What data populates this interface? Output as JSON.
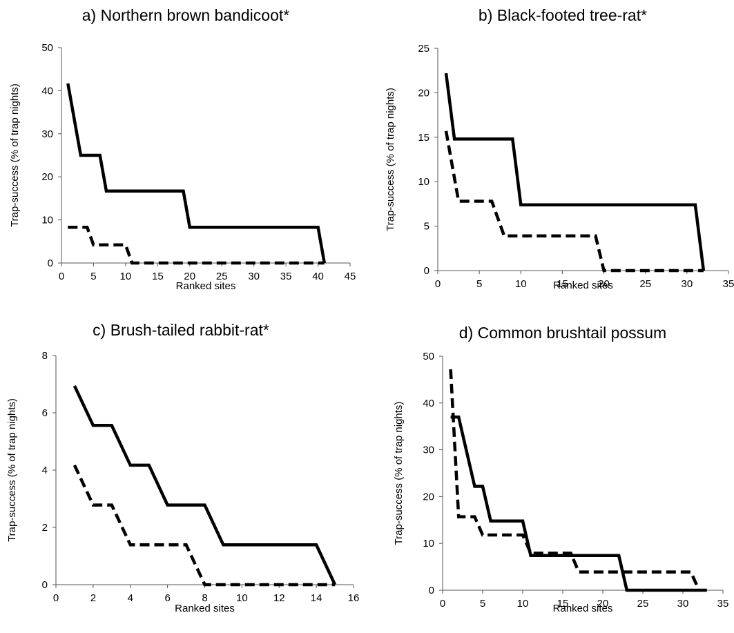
{
  "chart_data": [
    {
      "type": "line",
      "title": "a) Northern brown bandicoot*",
      "xlabel": "Ranked sites",
      "ylabel": "Trap-success (% of trap nights)",
      "xlim": [
        0,
        45
      ],
      "ylim": [
        0,
        50
      ],
      "xticks": [
        0,
        5,
        10,
        15,
        20,
        25,
        30,
        35,
        40,
        45
      ],
      "yticks": [
        0,
        10,
        20,
        30,
        40,
        50
      ],
      "grid": false,
      "series": [
        {
          "style": "solid",
          "x": [
            1,
            3,
            6,
            7,
            19,
            20,
            40,
            41
          ],
          "y": [
            41.7,
            25,
            25,
            16.7,
            16.7,
            8.3,
            8.3,
            0
          ]
        },
        {
          "style": "dashed",
          "x": [
            1,
            4,
            5,
            10,
            11,
            41
          ],
          "y": [
            8.3,
            8.3,
            4.2,
            4.2,
            0,
            0
          ]
        }
      ]
    },
    {
      "type": "line",
      "title": "b) Black-footed tree-rat*",
      "xlabel": "Ranked sites",
      "ylabel": "Trap-success (% of trap nights)",
      "xlim": [
        0,
        35
      ],
      "ylim": [
        0,
        25
      ],
      "xticks": [
        0,
        5,
        10,
        15,
        20,
        25,
        30,
        35
      ],
      "yticks": [
        0,
        5,
        10,
        15,
        20,
        25
      ],
      "grid": false,
      "series": [
        {
          "style": "solid",
          "x": [
            1,
            2,
            9,
            10,
            31,
            32
          ],
          "y": [
            22.2,
            14.8,
            14.8,
            7.4,
            7.4,
            0
          ]
        },
        {
          "style": "dashed",
          "x": [
            1,
            2.5,
            6.5,
            8,
            19,
            20,
            32
          ],
          "y": [
            15.7,
            7.8,
            7.8,
            3.9,
            3.9,
            0,
            0
          ]
        }
      ]
    },
    {
      "type": "line",
      "title": "c) Brush-tailed rabbit-rat*",
      "xlabel": "Ranked sites",
      "ylabel": "Trap-success (% of trap nights)",
      "xlim": [
        0,
        16
      ],
      "ylim": [
        0,
        8
      ],
      "xticks": [
        0,
        2,
        4,
        6,
        8,
        10,
        12,
        14,
        16
      ],
      "yticks": [
        0,
        2,
        4,
        6,
        8
      ],
      "grid": false,
      "series": [
        {
          "style": "solid",
          "x": [
            1,
            2,
            3,
            4,
            5,
            6,
            8,
            9,
            14,
            15
          ],
          "y": [
            6.94,
            5.56,
            5.56,
            4.17,
            4.17,
            2.78,
            2.78,
            1.39,
            1.39,
            0
          ]
        },
        {
          "style": "dashed",
          "x": [
            1,
            2,
            3,
            4,
            7,
            8,
            15
          ],
          "y": [
            4.17,
            2.78,
            2.78,
            1.39,
            1.39,
            0,
            0
          ]
        }
      ]
    },
    {
      "type": "line",
      "title": "d) Common brushtail possum",
      "xlabel": "Ranked sites",
      "ylabel": "Trap-success (% of trap nights)",
      "xlim": [
        0,
        35
      ],
      "ylim": [
        0,
        50
      ],
      "xticks": [
        0,
        5,
        10,
        15,
        20,
        25,
        30,
        35
      ],
      "yticks": [
        0,
        10,
        20,
        30,
        40,
        50
      ],
      "grid": false,
      "series": [
        {
          "style": "solid",
          "x": [
            1,
            2,
            4,
            5,
            6,
            10,
            11,
            22,
            23,
            33
          ],
          "y": [
            37,
            37,
            22.2,
            22.2,
            14.8,
            14.8,
            7.4,
            7.4,
            0,
            0
          ]
        },
        {
          "style": "dashed",
          "x": [
            1,
            2,
            4,
            5,
            10,
            11,
            16,
            17,
            31,
            32
          ],
          "y": [
            47.2,
            15.7,
            15.7,
            11.8,
            11.8,
            7.9,
            7.9,
            3.9,
            3.9,
            0
          ]
        }
      ]
    }
  ]
}
